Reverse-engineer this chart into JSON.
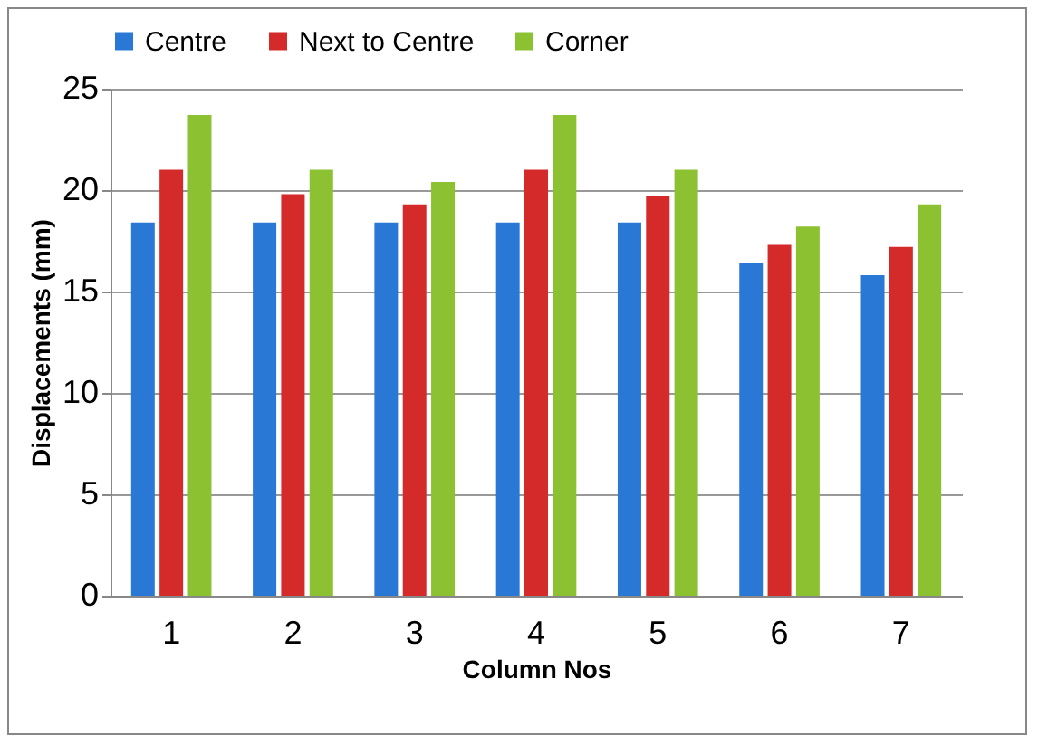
{
  "chart_data": {
    "type": "bar",
    "xlabel": "Column Nos",
    "ylabel": "Displacements (mm)",
    "categories": [
      "1",
      "2",
      "3",
      "4",
      "5",
      "6",
      "7"
    ],
    "series": [
      {
        "name": "Centre",
        "color": "#2a78d6",
        "values": [
          18.4,
          18.4,
          18.4,
          18.4,
          18.4,
          16.4,
          15.8
        ]
      },
      {
        "name": "Next to Centre",
        "color": "#d42a2a",
        "values": [
          21.0,
          19.8,
          19.3,
          21.0,
          19.7,
          17.3,
          17.2
        ]
      },
      {
        "name": "Corner",
        "color": "#8cc232",
        "values": [
          23.7,
          21.0,
          20.4,
          23.7,
          21.0,
          18.2,
          19.3
        ]
      }
    ],
    "ylim": [
      0,
      25
    ],
    "yticks": [
      0,
      5,
      10,
      15,
      20,
      25
    ],
    "grid": "y",
    "legend": "top"
  }
}
